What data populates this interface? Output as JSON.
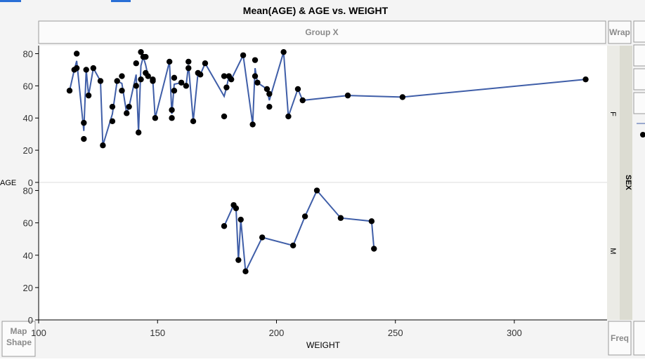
{
  "chart_data": {
    "type": "line",
    "title": "Mean(AGE) & AGE vs. WEIGHT",
    "group_x": "Group X",
    "wrap": "Wrap",
    "group_y": "SEX",
    "map_shape": "Map Shape",
    "freq": "Freq",
    "x_label": "WEIGHT",
    "y_label": "AGE",
    "color": "#3f5ea8",
    "point_color": "#000000",
    "xlim": [
      100,
      339
    ],
    "xticks": [
      100,
      150,
      200,
      250,
      300
    ],
    "ylim": [
      0,
      85
    ],
    "yticks": [
      0,
      20,
      40,
      60,
      80
    ],
    "panels": [
      {
        "label": "F",
        "points_x": [
          113,
          115,
          116,
          116,
          119,
          119,
          120,
          121,
          123,
          126,
          127,
          131,
          131,
          133,
          135,
          135,
          137,
          138,
          141,
          141,
          142,
          143,
          143,
          144,
          145,
          145,
          146,
          148,
          148,
          149,
          155,
          156,
          156,
          157,
          157,
          160,
          162,
          163,
          163,
          165,
          167,
          168,
          170,
          178,
          178,
          179,
          180,
          181,
          186,
          190,
          191,
          191,
          192,
          196,
          197,
          197,
          203,
          205,
          209,
          211,
          230,
          253,
          330
        ],
        "points": [
          57,
          70,
          80,
          71,
          37,
          27,
          70,
          54,
          71,
          63,
          23,
          47,
          38,
          63,
          66,
          57,
          43,
          47,
          74,
          60,
          31,
          81,
          64,
          78,
          78,
          68,
          66,
          64,
          63,
          40,
          75,
          45,
          40,
          57,
          65,
          62,
          60,
          75,
          71,
          38,
          68,
          67,
          74,
          66,
          41,
          59,
          66,
          64,
          79,
          36,
          76,
          66,
          62,
          58,
          55,
          47,
          81,
          41,
          58,
          51,
          54,
          53,
          64
        ],
        "mean_x": [
          113,
          115,
          116,
          119,
          120,
          121,
          123,
          126,
          127,
          131,
          133,
          135,
          137,
          138,
          141,
          142,
          143,
          144,
          145,
          146,
          148,
          149,
          155,
          156,
          157,
          160,
          162,
          163,
          165,
          167,
          168,
          170,
          178,
          179,
          180,
          181,
          186,
          190,
          191,
          192,
          196,
          197,
          203,
          205,
          209,
          211,
          230,
          253,
          330
        ],
        "mean": [
          57,
          70,
          75.5,
          32,
          70,
          54,
          71,
          63,
          23,
          42.5,
          63,
          61.5,
          43,
          47,
          67,
          31,
          72.5,
          78,
          73,
          66,
          63.5,
          40,
          75,
          42.5,
          61,
          62,
          60,
          73,
          38,
          68,
          67,
          74,
          53.5,
          59,
          66,
          64,
          79,
          36,
          71,
          62,
          58,
          51,
          81,
          41,
          58,
          51,
          54,
          53,
          64
        ]
      },
      {
        "label": "M",
        "points_x": [
          178,
          182,
          183,
          184,
          185,
          187,
          194,
          207,
          212,
          217,
          227,
          240,
          241
        ],
        "points": [
          58,
          71,
          69,
          37,
          62,
          30,
          51,
          46,
          64,
          80,
          63,
          61,
          44
        ],
        "mean_x": [
          178,
          182,
          183,
          184,
          185,
          187,
          194,
          207,
          212,
          217,
          227,
          240,
          241
        ],
        "mean": [
          58,
          71,
          69,
          37,
          62,
          30,
          51,
          46,
          64,
          80,
          63,
          61,
          44
        ]
      }
    ]
  }
}
